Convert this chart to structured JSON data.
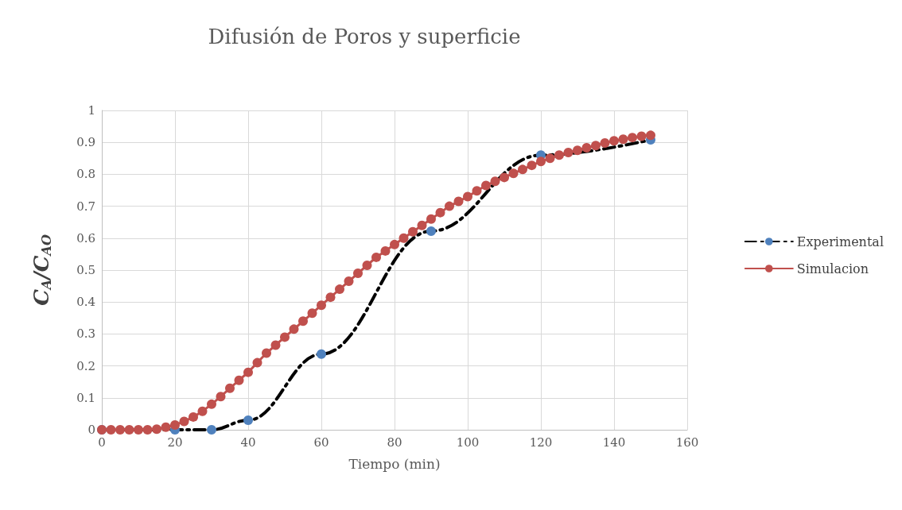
{
  "chart_data": {
    "type": "line",
    "title": "Difusión de Poros y superficie",
    "xlabel": "Tiempo (min)",
    "ylabel": "C$_{A}$/C$_{AO}$",
    "xlim": [
      0,
      160
    ],
    "xticks": [
      0,
      20,
      40,
      60,
      80,
      100,
      120,
      140,
      160
    ],
    "ylim": [
      0,
      1
    ],
    "yticks": [
      0,
      0.1,
      0.2,
      0.3,
      0.4,
      0.5,
      0.6,
      0.7,
      0.8,
      0.9,
      1
    ],
    "grid": true,
    "legend": "right",
    "marker": "circle",
    "series": [
      {
        "name": "Experimental",
        "color": "#4f81bd",
        "line_style": "dashed",
        "x": [
          0,
          20,
          30,
          40,
          60,
          90,
          120,
          150
        ],
        "values": [
          0,
          0,
          0,
          0.03,
          0.237,
          0.622,
          0.86,
          0.908
        ]
      },
      {
        "name": "Simulacion",
        "color": "#c0504d",
        "line_style": "solid",
        "x": [
          0,
          2.5,
          5,
          7.5,
          10,
          12.5,
          15,
          17.5,
          20,
          22.5,
          25,
          27.5,
          30,
          32.5,
          35,
          37.5,
          40,
          42.5,
          45,
          47.5,
          50,
          52.5,
          55,
          57.5,
          60,
          62.5,
          65,
          67.5,
          70,
          72.5,
          75,
          77.5,
          80,
          82.5,
          85,
          87.5,
          90,
          92.5,
          95,
          97.5,
          100,
          102.5,
          105,
          107.5,
          110,
          112.5,
          115,
          117.5,
          120,
          122.5,
          125,
          127.5,
          130,
          132.5,
          135,
          137.5,
          140,
          142.5,
          145,
          147.5,
          150
        ],
        "values": [
          0,
          0,
          0,
          0,
          0,
          0,
          0.002,
          0.008,
          0.015,
          0.026,
          0.04,
          0.058,
          0.08,
          0.104,
          0.13,
          0.155,
          0.18,
          0.21,
          0.24,
          0.265,
          0.29,
          0.315,
          0.34,
          0.365,
          0.39,
          0.415,
          0.44,
          0.465,
          0.49,
          0.515,
          0.54,
          0.56,
          0.58,
          0.6,
          0.62,
          0.64,
          0.66,
          0.68,
          0.7,
          0.715,
          0.73,
          0.748,
          0.765,
          0.778,
          0.79,
          0.803,
          0.815,
          0.828,
          0.84,
          0.85,
          0.86,
          0.868,
          0.875,
          0.883,
          0.89,
          0.898,
          0.905,
          0.91,
          0.915,
          0.919,
          0.922
        ]
      }
    ]
  }
}
